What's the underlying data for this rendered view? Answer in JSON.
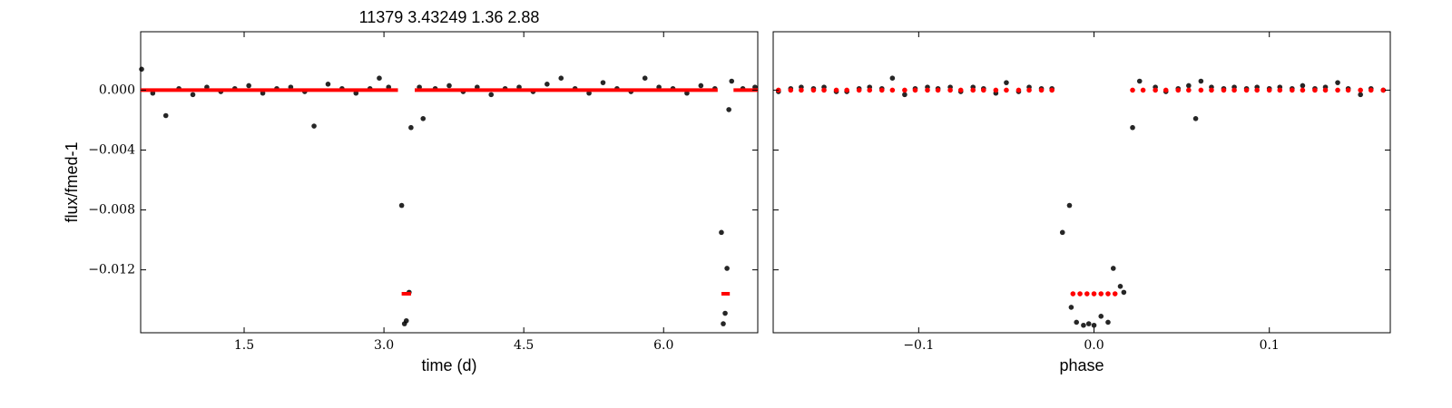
{
  "chart_data": [
    {
      "type": "scatter",
      "title": "11379 3.43249 1.36 2.88",
      "xlabel": "time (d)",
      "ylabel": "flux/fmed-1",
      "xlim": [
        0.39,
        7.01
      ],
      "ylim": [
        -0.0162,
        0.0039
      ],
      "xticks": [
        1.5,
        {
          "value": 3.0,
          "label": "3.0"
        },
        4.5,
        {
          "value": 6.0,
          "label": "6.0"
        }
      ],
      "yticks": [
        {
          "value": 0,
          "label": "0.000"
        },
        {
          "value": -0.004,
          "label": "−0.004"
        },
        {
          "value": -0.008,
          "label": "−0.008"
        },
        {
          "value": -0.012,
          "label": "−0.012"
        }
      ],
      "show_ytick_labels": true,
      "series": [
        {
          "color": "#000000",
          "mode": "markers",
          "x": [
            0.4,
            0.52,
            0.66,
            0.8,
            0.95,
            1.1,
            1.25,
            1.4,
            1.55,
            1.7,
            1.85,
            2.0,
            2.15,
            2.25,
            2.4,
            2.55,
            2.7,
            2.85,
            2.95,
            3.05,
            3.19,
            3.22,
            3.24,
            3.27,
            3.29,
            3.38,
            3.42,
            3.55,
            3.7,
            3.85,
            4.0,
            4.15,
            4.3,
            4.45,
            4.6,
            4.75,
            4.9,
            5.05,
            5.2,
            5.35,
            5.5,
            5.65,
            5.8,
            5.95,
            6.1,
            6.25,
            6.4,
            6.55,
            6.62,
            6.64,
            6.66,
            6.68,
            6.7,
            6.73,
            6.85,
            6.98
          ],
          "values": [
            0.0014,
            -0.0002,
            -0.0017,
            0.0001,
            -0.0003,
            0.0002,
            -0.0001,
            0.0001,
            0.0003,
            -0.0002,
            0.0001,
            0.0002,
            -0.0001,
            -0.0024,
            0.0004,
            0.0001,
            -0.0002,
            0.0001,
            0.0008,
            0.0002,
            -0.0077,
            -0.0156,
            -0.0154,
            -0.0135,
            -0.0025,
            0.0002,
            -0.0019,
            0.0001,
            0.0003,
            -0.0001,
            0.0002,
            -0.0003,
            0.0001,
            0.0002,
            -0.0001,
            0.0004,
            0.0008,
            0.0001,
            -0.0002,
            0.0005,
            0.0001,
            -0.0001,
            0.0008,
            0.0002,
            0.0001,
            -0.0002,
            0.0003,
            0.0001,
            -0.0095,
            -0.0156,
            -0.0149,
            -0.0119,
            -0.0013,
            0.0006,
            0.0001,
            0.0002
          ]
        },
        {
          "color": "#ff0000",
          "mode": "line",
          "x": [
            0.39,
            3.15,
            null,
            3.19,
            3.29,
            null,
            3.33,
            6.58,
            null,
            6.62,
            6.71,
            null,
            6.75,
            7.01
          ],
          "values": [
            0,
            0,
            null,
            -0.0136,
            -0.0136,
            null,
            0,
            0,
            null,
            -0.0136,
            -0.0136,
            null,
            0,
            0
          ]
        }
      ]
    },
    {
      "type": "scatter",
      "xlabel": "phase",
      "xlim": [
        -0.183,
        0.169
      ],
      "ylim": [
        -0.0162,
        0.0039
      ],
      "xticks": [
        {
          "value": -0.1,
          "label": "−0.1"
        },
        {
          "value": 0.0,
          "label": "0.0"
        },
        0.1
      ],
      "yticks": [
        0,
        -0.004,
        -0.008,
        -0.012
      ],
      "show_ytick_labels": false,
      "series": [
        {
          "color": "#000000",
          "mode": "markers",
          "x": [
            -0.18,
            -0.173,
            -0.167,
            -0.16,
            -0.154,
            -0.147,
            -0.141,
            -0.134,
            -0.128,
            -0.121,
            -0.115,
            -0.108,
            -0.102,
            -0.095,
            -0.089,
            -0.082,
            -0.076,
            -0.069,
            -0.063,
            -0.056,
            -0.05,
            -0.043,
            -0.037,
            -0.03,
            -0.024,
            -0.018,
            -0.014,
            -0.013,
            -0.01,
            -0.006,
            -0.003,
            0.0,
            0.004,
            0.008,
            0.011,
            0.015,
            0.017,
            0.022,
            0.026,
            0.035,
            0.041,
            0.048,
            0.054,
            0.058,
            0.061,
            0.067,
            0.074,
            0.08,
            0.087,
            0.093,
            0.1,
            0.106,
            0.113,
            0.119,
            0.126,
            0.132,
            0.139,
            0.145,
            0.152,
            0.158,
            0.165
          ],
          "values": [
            -0.0001,
            0.0001,
            0.0002,
            0.0001,
            0.0002,
            -0.0001,
            -0.0001,
            0.0001,
            0.0002,
            0.0001,
            0.0008,
            -0.0003,
            0.0001,
            0.0002,
            0.0001,
            0.0002,
            -0.0001,
            0.0002,
            0.0001,
            -0.0002,
            0.0005,
            -0.0001,
            0.0002,
            0.0001,
            0.0001,
            -0.0095,
            -0.0077,
            -0.0145,
            -0.0155,
            -0.0157,
            -0.0156,
            -0.0157,
            -0.0151,
            -0.0155,
            -0.0119,
            -0.0131,
            -0.0135,
            -0.0025,
            0.0006,
            0.0002,
            -0.0001,
            0.0001,
            0.0003,
            -0.0019,
            0.0006,
            0.0002,
            0.0001,
            0.0002,
            0.0001,
            0.0002,
            0.0001,
            0.0002,
            0.0001,
            0.0003,
            0.0001,
            0.0002,
            0.0005,
            0.0001,
            -0.0003,
            0.0001,
            0.0
          ]
        },
        {
          "color": "#ff0000",
          "mode": "markers",
          "x": [
            -0.18,
            -0.173,
            -0.167,
            -0.16,
            -0.154,
            -0.147,
            -0.141,
            -0.134,
            -0.128,
            -0.121,
            -0.115,
            -0.108,
            -0.102,
            -0.095,
            -0.089,
            -0.082,
            -0.076,
            -0.069,
            -0.063,
            -0.056,
            -0.05,
            -0.043,
            -0.037,
            -0.03,
            -0.024,
            -0.012,
            -0.008,
            -0.004,
            0.0,
            0.004,
            0.008,
            0.012,
            0.022,
            0.028,
            0.035,
            0.041,
            0.048,
            0.054,
            0.061,
            0.067,
            0.074,
            0.08,
            0.087,
            0.093,
            0.1,
            0.106,
            0.113,
            0.119,
            0.126,
            0.132,
            0.139,
            0.145,
            0.152,
            0.158,
            0.165
          ],
          "values": [
            0,
            0,
            0,
            0,
            0,
            0,
            0,
            0,
            0,
            0,
            0,
            0,
            0,
            0,
            0,
            0,
            0,
            0,
            0,
            0,
            0,
            0,
            0,
            0,
            0,
            -0.0136,
            -0.0136,
            -0.0136,
            -0.0136,
            -0.0136,
            -0.0136,
            -0.0136,
            0,
            0,
            0,
            0,
            0,
            0,
            0,
            0,
            0,
            0,
            0,
            0,
            0,
            0,
            0,
            0,
            0,
            0,
            0,
            0,
            0,
            0,
            0
          ]
        }
      ]
    }
  ]
}
